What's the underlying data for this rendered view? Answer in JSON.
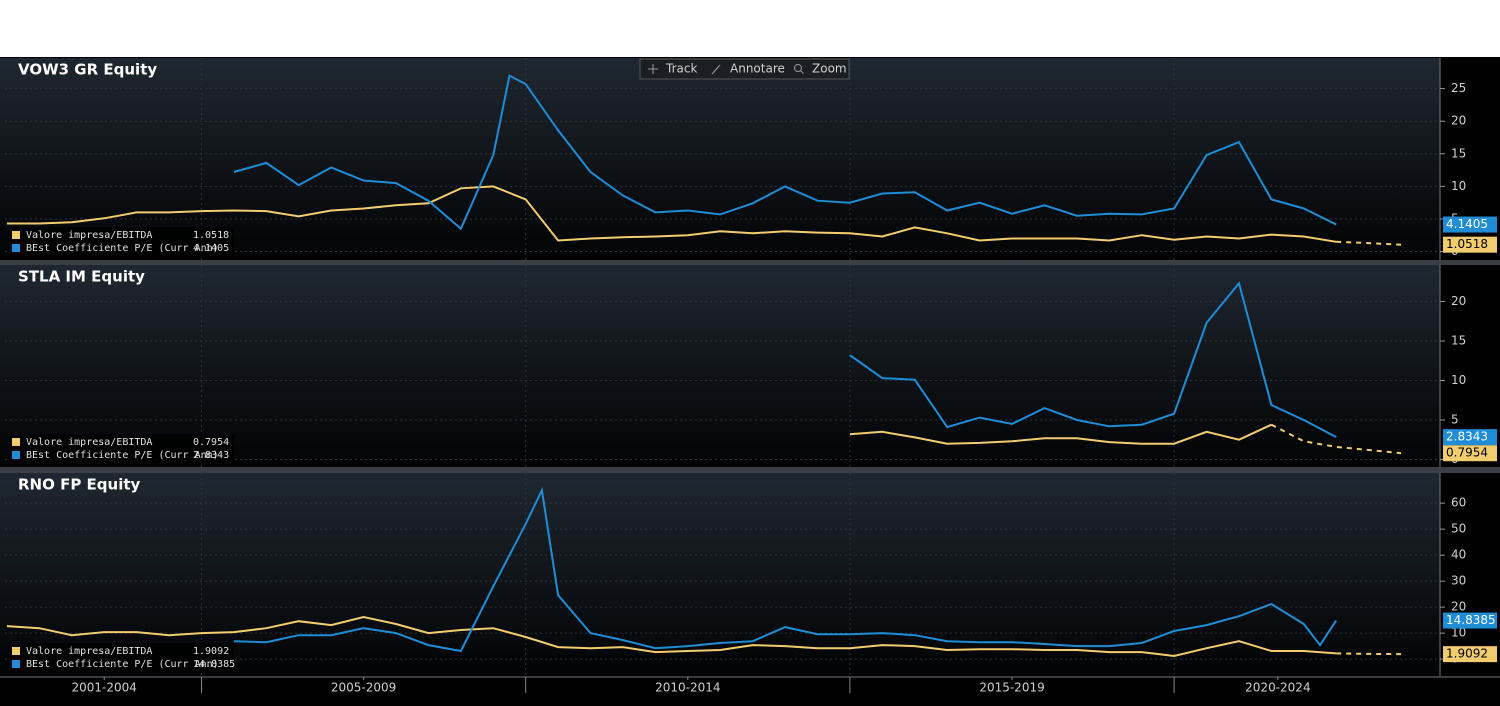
{
  "toolbar": [
    "Track",
    "Annotare",
    "Zoom"
  ],
  "chart_data": [
    {
      "type": "line",
      "title": "VOW3 GR Equity",
      "grid": true,
      "xlim": [
        2001.97,
        2024.1
      ],
      "ylim": [
        -1.3,
        29.7
      ],
      "yticks": [
        0,
        5,
        10,
        15,
        20,
        25
      ],
      "series": [
        {
          "name": "Valore impresa/EBITDA",
          "color": "#f2cd6f",
          "x": [
            2002.0,
            2002.5,
            2003.0,
            2003.5,
            2004.0,
            2004.5,
            2005.0,
            2005.5,
            2006.0,
            2006.5,
            2007.0,
            2007.5,
            2008.0,
            2008.5,
            2009.0,
            2009.5,
            2010.0,
            2010.5,
            2011.0,
            2011.5,
            2012.0,
            2012.5,
            2013.0,
            2013.5,
            2014.0,
            2014.5,
            2015.0,
            2015.5,
            2016.0,
            2016.5,
            2017.0,
            2017.5,
            2018.0,
            2018.5,
            2019.0,
            2019.5,
            2020.0,
            2020.5,
            2021.0,
            2021.5,
            2022.0,
            2022.5
          ],
          "values": [
            4.3,
            4.3,
            4.5,
            5.1,
            6.0,
            6.0,
            6.2,
            6.3,
            6.2,
            5.4,
            6.3,
            6.6,
            7.1,
            7.4,
            9.7,
            10.0,
            8.0,
            1.7,
            2.0,
            2.2,
            2.3,
            2.5,
            3.1,
            2.8,
            3.1,
            2.9,
            2.8,
            2.3,
            3.7,
            2.8,
            1.7,
            2.0,
            2.0,
            2.0,
            1.7,
            2.5,
            1.8,
            2.3,
            2.0,
            2.6,
            2.3,
            1.5
          ]
        },
        {
          "color": "#f2cd6f",
          "dashed": true,
          "x": [
            2022.5,
            2023.0,
            2023.5
          ],
          "values": [
            1.5,
            1.3,
            1.0518
          ]
        },
        {
          "name": "BEst Coefficiente P/E (Curr Ann)",
          "color": "#1f8dd6",
          "x": [
            2005.5,
            2006.0,
            2006.5,
            2007.0,
            2007.5,
            2008.0,
            2008.5,
            2009.0,
            2009.5,
            2009.75,
            2010.0,
            2010.5,
            2011.0,
            2011.5,
            2012.0,
            2012.5,
            2013.0,
            2013.5,
            2014.0,
            2014.5,
            2015.0,
            2015.5,
            2016.0,
            2016.5,
            2017.0,
            2017.5,
            2018.0,
            2018.5,
            2019.0,
            2019.5,
            2020.0,
            2020.5,
            2021.0,
            2021.5,
            2022.0,
            2022.5
          ],
          "values": [
            12.2,
            13.6,
            10.2,
            12.9,
            10.9,
            10.5,
            7.8,
            3.5,
            14.8,
            27.0,
            25.7,
            18.6,
            12.2,
            8.6,
            6.0,
            6.3,
            5.7,
            7.4,
            10.0,
            7.8,
            7.5,
            8.9,
            9.1,
            6.3,
            7.5,
            5.8,
            7.1,
            5.5,
            5.8,
            5.7,
            6.6,
            14.8,
            16.8,
            8.0,
            6.6,
            4.1405
          ]
        }
      ]
    },
    {
      "type": "line",
      "title": "STLA IM Equity",
      "grid": true,
      "xlim": [
        2001.97,
        2024.1
      ],
      "ylim": [
        -0.95,
        24.62
      ],
      "yticks": [
        0,
        5,
        10,
        15,
        20
      ],
      "series": [
        {
          "name": "Valore impresa/EBITDA",
          "color": "#f2cd6f",
          "x": [
            2015.0,
            2015.5,
            2016.0,
            2016.5,
            2017.0,
            2017.5,
            2018.0,
            2018.5,
            2019.0,
            2019.5,
            2020.0,
            2020.5,
            2021.0,
            2021.5
          ],
          "values": [
            3.2,
            3.5,
            2.8,
            2.0,
            2.1,
            2.3,
            2.7,
            2.7,
            2.2,
            2.0,
            2.0,
            3.5,
            2.5,
            4.4
          ]
        },
        {
          "color": "#f2cd6f",
          "dashed": true,
          "x": [
            2021.5,
            2022.0,
            2022.5,
            2023.0,
            2023.5
          ],
          "values": [
            4.4,
            2.3,
            1.6,
            1.2,
            0.7954
          ]
        },
        {
          "name": "BEst Coefficiente P/E (Curr Ann)",
          "color": "#1f8dd6",
          "x": [
            2015.0,
            2015.5,
            2016.0,
            2016.5,
            2017.0,
            2017.5,
            2018.0,
            2018.5,
            2019.0,
            2019.5,
            2020.0,
            2020.5,
            2021.0,
            2021.5,
            2022.0,
            2022.5
          ],
          "values": [
            13.2,
            10.3,
            10.1,
            4.1,
            5.3,
            4.5,
            6.5,
            5.0,
            4.2,
            4.4,
            5.8,
            17.3,
            22.3,
            6.9,
            5.0,
            2.8343
          ]
        }
      ]
    },
    {
      "type": "line",
      "title": "RNO FP Equity",
      "grid": true,
      "xlim": [
        2001.97,
        2024.1
      ],
      "ylim": [
        -6.5,
        71.6
      ],
      "yticks": [
        0,
        10,
        20,
        30,
        40,
        50,
        60
      ],
      "xticks": [
        {
          "value": 2003.5,
          "label": "2001-2004"
        },
        {
          "value": 2007.5,
          "label": "2005-2009"
        },
        {
          "value": 2012.5,
          "label": "2010-2014"
        },
        {
          "value": 2017.5,
          "label": "2015-2019"
        },
        {
          "value": 2021.6,
          "label": "2020-2024"
        }
      ],
      "xminor": [
        2005,
        2010,
        2015,
        2020
      ],
      "series": [
        {
          "name": "Valore impresa/EBITDA",
          "color": "#f2cd6f",
          "x": [
            2002.0,
            2002.5,
            2003.0,
            2003.5,
            2004.0,
            2004.5,
            2005.0,
            2005.5,
            2006.0,
            2006.5,
            2007.0,
            2007.5,
            2008.0,
            2008.5,
            2009.0,
            2009.5,
            2010.0,
            2010.5,
            2011.0,
            2011.5,
            2012.0,
            2012.5,
            2013.0,
            2013.5,
            2014.0,
            2014.5,
            2015.0,
            2015.5,
            2016.0,
            2016.5,
            2017.0,
            2017.5,
            2018.0,
            2018.5,
            2019.0,
            2019.5,
            2020.0,
            2020.5,
            2021.0,
            2021.5,
            2022.0,
            2022.5
          ],
          "values": [
            12.7,
            11.9,
            9.2,
            10.4,
            10.4,
            9.2,
            10.0,
            10.4,
            11.9,
            14.6,
            13.1,
            16.2,
            13.5,
            10.0,
            11.2,
            11.9,
            8.5,
            4.6,
            4.2,
            4.6,
            2.7,
            3.1,
            3.5,
            5.4,
            5.0,
            4.2,
            4.2,
            5.4,
            5.0,
            3.5,
            3.8,
            3.8,
            3.5,
            3.5,
            2.7,
            2.7,
            1.2,
            4.2,
            6.9,
            3.1,
            3.1,
            2.2
          ]
        },
        {
          "color": "#f2cd6f",
          "dashed": true,
          "x": [
            2022.5,
            2023.0,
            2023.5
          ],
          "values": [
            2.2,
            2.0,
            1.9092
          ]
        },
        {
          "name": "BEst Coefficiente P/E (Curr Ann)",
          "color": "#1f8dd6",
          "x": [
            2005.5,
            2006.0,
            2006.5,
            2007.0,
            2007.5,
            2008.0,
            2008.5,
            2009.0,
            2009.5,
            2010.0,
            2010.25,
            2010.5,
            2011.0,
            2011.5,
            2012.0,
            2012.5,
            2013.0,
            2013.5,
            2014.0,
            2014.5,
            2015.0,
            2015.5,
            2016.0,
            2016.5,
            2017.0,
            2017.5,
            2018.0,
            2018.5,
            2019.0,
            2019.5,
            2020.0,
            2020.5,
            2021.0,
            2021.5,
            2022.0,
            2022.25,
            2022.5
          ],
          "values": [
            6.9,
            6.5,
            9.2,
            9.2,
            11.9,
            10.0,
            5.4,
            3.1,
            28,
            52,
            65,
            24.6,
            10.0,
            7.3,
            4.2,
            5.0,
            6.2,
            6.9,
            12.3,
            9.6,
            9.6,
            10.0,
            9.2,
            6.9,
            6.5,
            6.5,
            5.8,
            5.0,
            5.0,
            6.2,
            10.8,
            13.1,
            16.5,
            21.2,
            13.5,
            5.4,
            14.8385
          ]
        }
      ]
    }
  ]
}
